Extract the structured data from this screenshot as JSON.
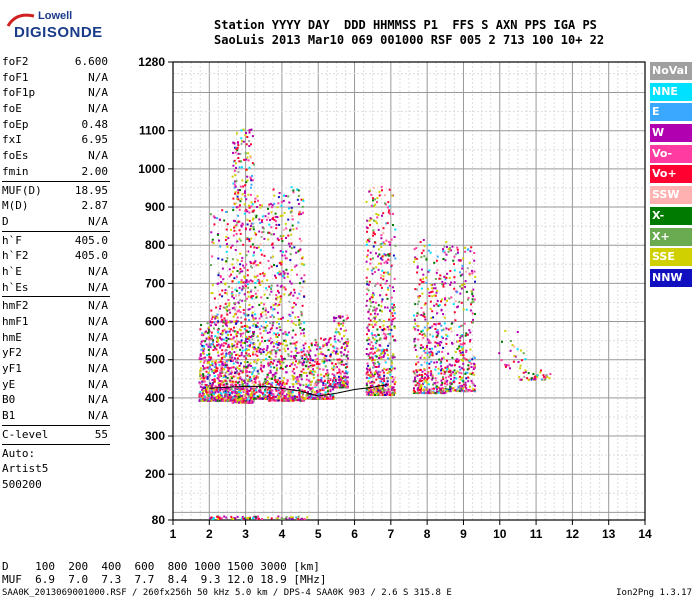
{
  "logo": {
    "brand": "Lowell",
    "product": "DIGISONDE"
  },
  "header": {
    "line1": "Station YYYY DAY  DDD HHMMSS P1  FFS S AXN PPS IGA PS",
    "line2": "SaoLuis 2013 Mar10 069 001000 RSF 005 2 713 100 10+ 22"
  },
  "params": [
    {
      "label": "foF2",
      "value": "6.600"
    },
    {
      "label": "foF1",
      "value": "N/A"
    },
    {
      "label": "foF1p",
      "value": "N/A"
    },
    {
      "label": "foE",
      "value": "N/A"
    },
    {
      "label": "foEp",
      "value": "0.48"
    },
    {
      "label": "fxI",
      "value": "6.95"
    },
    {
      "label": "foEs",
      "value": "N/A"
    },
    {
      "label": "fmin",
      "value": "2.00"
    },
    {
      "sep": true
    },
    {
      "label": "MUF(D)",
      "value": "18.95"
    },
    {
      "label": "M(D)",
      "value": "2.87"
    },
    {
      "label": "D",
      "value": "N/A"
    },
    {
      "sep": true
    },
    {
      "label": "h`F",
      "value": "405.0"
    },
    {
      "label": "h`F2",
      "value": "405.0"
    },
    {
      "label": "h`E",
      "value": "N/A"
    },
    {
      "label": "h`Es",
      "value": "N/A"
    },
    {
      "sep": true
    },
    {
      "label": "hmF2",
      "value": "N/A"
    },
    {
      "label": "hmF1",
      "value": "N/A"
    },
    {
      "label": "hmE",
      "value": "N/A"
    },
    {
      "label": "yF2",
      "value": "N/A"
    },
    {
      "label": "yF1",
      "value": "N/A"
    },
    {
      "label": "yE",
      "value": "N/A"
    },
    {
      "label": "B0",
      "value": "N/A"
    },
    {
      "label": "B1",
      "value": "N/A"
    },
    {
      "sep": true
    },
    {
      "label": "C-level",
      "value": "55"
    },
    {
      "sep": true
    }
  ],
  "auto": [
    "Auto:",
    "Artist5",
    "500200"
  ],
  "legend": [
    {
      "label": "NoVal",
      "color": "#a0a0a0"
    },
    {
      "label": "NNE",
      "color": "#00e0ff"
    },
    {
      "label": "E",
      "color": "#3aa8ff"
    },
    {
      "label": "W",
      "color": "#b000b0"
    },
    {
      "label": "Vo-",
      "color": "#ff3aa0"
    },
    {
      "label": "Vo+",
      "color": "#ff0030"
    },
    {
      "label": "SSW",
      "color": "#ffb0b0"
    },
    {
      "label": "X-",
      "color": "#007a00"
    },
    {
      "label": "X+",
      "color": "#6aaa50"
    },
    {
      "label": "SSE",
      "color": "#d0d000"
    },
    {
      "label": "NNW",
      "color": "#1010c0"
    }
  ],
  "muf_table": {
    "row1": "D    100  200  400  600  800 1000 1500 3000 [km]",
    "row2": "MUF  6.9  7.0  7.3  7.7  8.4  9.3 12.0 18.9 [MHz]"
  },
  "footer": {
    "left": "SAA0K_2013069001000.RSF / 260fx256h 50 kHz 5.0 km / DPS-4 SAA0K 903 / 2.6 S 315.8 E",
    "right": "Ion2Png 1.3.17"
  },
  "chart_data": {
    "type": "scatter",
    "title": "",
    "xlabel": "",
    "ylabel": "",
    "xlim": [
      1,
      14
    ],
    "ylim": [
      80,
      1280
    ],
    "xticks": [
      1,
      2,
      3,
      4,
      5,
      6,
      7,
      8,
      9,
      10,
      11,
      12,
      13,
      14
    ],
    "yticks": [
      80,
      200,
      300,
      400,
      500,
      600,
      700,
      800,
      900,
      1000,
      1100,
      1280
    ],
    "grid": true,
    "trace": {
      "x": [
        2.0,
        2.5,
        3.0,
        3.5,
        4.0,
        4.5,
        5.0,
        5.5,
        6.0,
        6.5,
        6.9
      ],
      "y": [
        425,
        428,
        430,
        430,
        425,
        418,
        405,
        412,
        422,
        428,
        435
      ]
    },
    "clusters": [
      {
        "x": [
          1.7,
          2.6
        ],
        "y": [
          395,
          600
        ],
        "n": 650
      },
      {
        "x": [
          2.0,
          2.6
        ],
        "y": [
          600,
          900
        ],
        "n": 120
      },
      {
        "x": [
          2.6,
          3.2
        ],
        "y": [
          390,
          1110
        ],
        "n": 700
      },
      {
        "x": [
          3.2,
          3.6
        ],
        "y": [
          400,
          950
        ],
        "n": 260
      },
      {
        "x": [
          3.6,
          4.6
        ],
        "y": [
          395,
          960
        ],
        "n": 650
      },
      {
        "x": [
          4.6,
          5.4
        ],
        "y": [
          400,
          560
        ],
        "n": 300
      },
      {
        "x": [
          5.4,
          5.8
        ],
        "y": [
          430,
          620
        ],
        "n": 200
      },
      {
        "x": [
          6.3,
          7.1
        ],
        "y": [
          410,
          960
        ],
        "n": 600
      },
      {
        "x": [
          7.6,
          8.5
        ],
        "y": [
          415,
          820
        ],
        "n": 420
      },
      {
        "x": [
          8.5,
          9.3
        ],
        "y": [
          420,
          800
        ],
        "n": 320
      },
      {
        "x": [
          9.9,
          10.7
        ],
        "y": [
          480,
          600
        ],
        "n": 25
      },
      {
        "x": [
          10.5,
          11.4
        ],
        "y": [
          450,
          475
        ],
        "n": 40
      },
      {
        "x": [
          2.0,
          4.7
        ],
        "y": [
          85,
          92
        ],
        "n": 70
      }
    ]
  }
}
